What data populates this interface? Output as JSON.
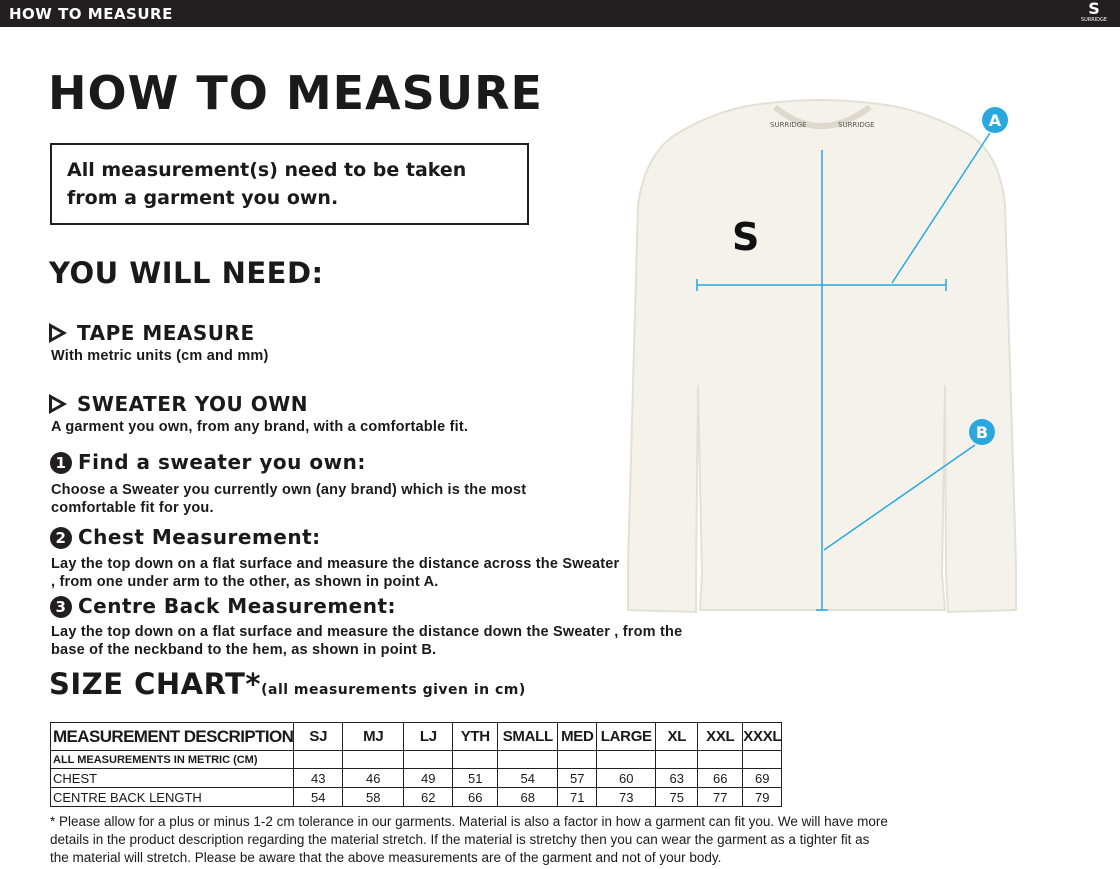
{
  "header": {
    "title": "HOW TO MEASURE",
    "logo": "SURRIDGE"
  },
  "title": "HOW TO MEASURE",
  "note": "All measurement(s) need to be taken from a garment you own.",
  "need_title": "YOU WILL NEED:",
  "needs": [
    {
      "title": "TAPE MEASURE",
      "desc": "With metric units (cm and mm)"
    },
    {
      "title": "SWEATER YOU OWN",
      "desc": "A garment you own, from any brand, with a comfortable fit."
    }
  ],
  "steps": [
    {
      "num": "1",
      "title": "Find a sweater you own:",
      "desc": "Choose a Sweater you currently own (any brand) which is the most comfortable fit for you."
    },
    {
      "num": "2",
      "title": "Chest Measurement:",
      "desc": "Lay the top down on a flat surface and measure the distance across the Sweater , from one under arm to the other, as shown in point A."
    },
    {
      "num": "3",
      "title": "Centre Back Measurement:",
      "desc": "Lay the top down on a flat surface and measure the distance down the Sweater , from the base of the neckband to the hem, as shown in point B."
    }
  ],
  "size_chart": {
    "title": "SIZE CHART*",
    "subtitle": "(all measurements given in cm)",
    "headers": [
      "MEASUREMENT DESCRIPTION",
      "SJ",
      "MJ",
      "LJ",
      "YTH",
      "SMALL",
      "MED",
      "LARGE",
      "XL",
      "XXL",
      "XXXL"
    ],
    "subheader": "ALL MEASUREMENTS IN METRIC (CM)",
    "rows": [
      {
        "label": "CHEST",
        "values": [
          "43",
          "46",
          "49",
          "51",
          "54",
          "57",
          "60",
          "63",
          "66",
          "69"
        ]
      },
      {
        "label": "CENTRE BACK LENGTH",
        "values": [
          "54",
          "58",
          "62",
          "66",
          "68",
          "71",
          "73",
          "75",
          "77",
          "79"
        ]
      }
    ]
  },
  "footnote": "* Please allow for a plus or minus 1-2 cm tolerance in our garments. Material is also a factor in how a garment can fit you. We will have more details in the product description regarding the material stretch.  If the material is stretchy then you can wear the garment as a tighter fit as the material will stretch.  Please be aware that the above measurements are of the garment and not of your body.",
  "diagram": {
    "point_a": "A",
    "point_b": "B",
    "neck_label": "SURRIDGE",
    "accent": "#29a8e0"
  }
}
